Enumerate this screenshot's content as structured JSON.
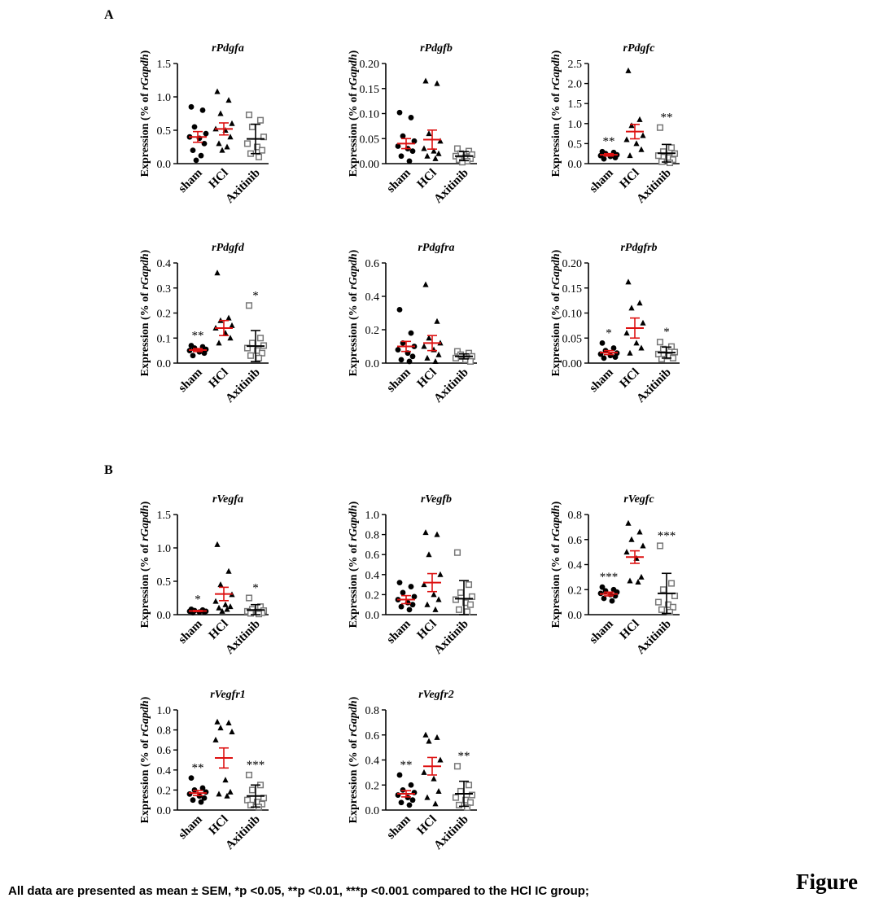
{
  "panel_labels": [
    "A",
    "B"
  ],
  "footnote": "All data are presented as mean ± SEM, *p <0.05, **p <0.01, ***p <0.001 compared to the HCl IC group;",
  "figure_label": "Figure",
  "colors": {
    "mean_sem": "#dd1111",
    "group_sd": "#000000",
    "axitinib_marker": "#777777",
    "axis": "#000000"
  },
  "chart_data": [
    {
      "type": "scatter",
      "title": "rPdgfa",
      "ylabel": "Expression (% of rGapdh)",
      "categories": [
        "sham",
        "HCl",
        "Axitinib"
      ],
      "ylim": [
        0,
        1.5
      ],
      "yticks": [
        {
          "v": 0,
          "t": "0.0"
        },
        {
          "v": 0.5,
          "t": "0.5"
        },
        {
          "v": 1,
          "t": "1.0"
        },
        {
          "v": 1.5,
          "t": "1.5"
        }
      ],
      "series": [
        {
          "group": "sham",
          "marker": "circle",
          "values": [
            0.85,
            0.8,
            0.55,
            0.45,
            0.4,
            0.38,
            0.3,
            0.2,
            0.12,
            0.05
          ],
          "mean": 0.4,
          "sem": 0.08,
          "bar": "red",
          "sig": ""
        },
        {
          "group": "HCl",
          "marker": "triangle",
          "values": [
            1.08,
            0.95,
            0.75,
            0.6,
            0.52,
            0.5,
            0.4,
            0.3,
            0.25,
            0.2
          ],
          "mean": 0.52,
          "sem": 0.09,
          "bar": "red",
          "sig": ""
        },
        {
          "group": "Axitinib",
          "marker": "square",
          "values": [
            0.73,
            0.65,
            0.55,
            0.4,
            0.3,
            0.25,
            0.2,
            0.15,
            0.1
          ],
          "mean": 0.37,
          "sem": 0.22,
          "bar": "black",
          "sig": ""
        }
      ]
    },
    {
      "type": "scatter",
      "title": "rPdgfb",
      "ylabel": "Expression (% of rGapdh)",
      "categories": [
        "sham",
        "HCl",
        "Axitinib"
      ],
      "ylim": [
        0,
        0.2
      ],
      "yticks": [
        {
          "v": 0,
          "t": "0.00"
        },
        {
          "v": 0.05,
          "t": "0.05"
        },
        {
          "v": 0.1,
          "t": "0.10"
        },
        {
          "v": 0.15,
          "t": "0.15"
        },
        {
          "v": 0.2,
          "t": "0.20"
        }
      ],
      "series": [
        {
          "group": "sham",
          "marker": "circle",
          "values": [
            0.102,
            0.092,
            0.055,
            0.045,
            0.035,
            0.03,
            0.025,
            0.015,
            0.005
          ],
          "mean": 0.04,
          "sem": 0.01,
          "bar": "red",
          "sig": ""
        },
        {
          "group": "HCl",
          "marker": "triangle",
          "values": [
            0.165,
            0.16,
            0.06,
            0.045,
            0.03,
            0.025,
            0.02,
            0.015,
            0.01
          ],
          "mean": 0.048,
          "sem": 0.019,
          "bar": "red",
          "sig": ""
        },
        {
          "group": "Axitinib",
          "marker": "square",
          "values": [
            0.03,
            0.025,
            0.02,
            0.018,
            0.015,
            0.012,
            0.01,
            0.008,
            0.005,
            0.003
          ],
          "mean": 0.015,
          "sem": 0.009,
          "bar": "black",
          "sig": ""
        }
      ]
    },
    {
      "type": "scatter",
      "title": "rPdgfc",
      "ylabel": "Expression (% of rGapdh)",
      "categories": [
        "sham",
        "HCl",
        "Axitinib"
      ],
      "ylim": [
        0,
        2.5
      ],
      "yticks": [
        {
          "v": 0,
          "t": "0.0"
        },
        {
          "v": 0.5,
          "t": "0.5"
        },
        {
          "v": 1,
          "t": "1.0"
        },
        {
          "v": 1.5,
          "t": "1.5"
        },
        {
          "v": 2,
          "t": "2.0"
        },
        {
          "v": 2.5,
          "t": "2.5"
        }
      ],
      "series": [
        {
          "group": "sham",
          "marker": "circle",
          "values": [
            0.3,
            0.28,
            0.25,
            0.22,
            0.2,
            0.18,
            0.15,
            0.12
          ],
          "mean": 0.22,
          "sem": 0.03,
          "bar": "red",
          "sig": "**"
        },
        {
          "group": "HCl",
          "marker": "triangle",
          "values": [
            2.32,
            1.1,
            0.95,
            0.7,
            0.6,
            0.5,
            0.35,
            0.2
          ],
          "mean": 0.8,
          "sem": 0.18,
          "bar": "red",
          "sig": ""
        },
        {
          "group": "Axitinib",
          "marker": "square",
          "values": [
            0.9,
            0.4,
            0.3,
            0.25,
            0.2,
            0.15,
            0.1,
            0.05,
            0.02
          ],
          "mean": 0.26,
          "sem": 0.22,
          "bar": "black",
          "sig": "**"
        }
      ]
    },
    {
      "type": "scatter",
      "title": "rPdgfd",
      "ylabel": "Expression (% of rGapdh)",
      "categories": [
        "sham",
        "HCl",
        "Axitinib"
      ],
      "ylim": [
        0,
        0.4
      ],
      "yticks": [
        {
          "v": 0,
          "t": "0.0"
        },
        {
          "v": 0.1,
          "t": "0.1"
        },
        {
          "v": 0.2,
          "t": "0.2"
        },
        {
          "v": 0.3,
          "t": "0.3"
        },
        {
          "v": 0.4,
          "t": "0.4"
        }
      ],
      "series": [
        {
          "group": "sham",
          "marker": "circle",
          "values": [
            0.07,
            0.065,
            0.06,
            0.055,
            0.05,
            0.045,
            0.04,
            0.03
          ],
          "mean": 0.052,
          "sem": 0.006,
          "bar": "red",
          "sig": "**"
        },
        {
          "group": "HCl",
          "marker": "triangle",
          "values": [
            0.36,
            0.18,
            0.17,
            0.15,
            0.14,
            0.12,
            0.1,
            0.08
          ],
          "mean": 0.14,
          "sem": 0.03,
          "bar": "red",
          "sig": ""
        },
        {
          "group": "Axitinib",
          "marker": "square",
          "values": [
            0.23,
            0.1,
            0.08,
            0.07,
            0.06,
            0.05,
            0.04,
            0.03,
            0.02
          ],
          "mean": 0.068,
          "sem": 0.062,
          "bar": "black",
          "sig": "*"
        }
      ]
    },
    {
      "type": "scatter",
      "title": "rPdgfra",
      "ylabel": "Expression (% of rGapdh)",
      "categories": [
        "sham",
        "HCl",
        "Axitinib"
      ],
      "ylim": [
        0,
        0.6
      ],
      "yticks": [
        {
          "v": 0,
          "t": "0.0"
        },
        {
          "v": 0.2,
          "t": "0.2"
        },
        {
          "v": 0.4,
          "t": "0.4"
        },
        {
          "v": 0.6,
          "t": "0.6"
        }
      ],
      "series": [
        {
          "group": "sham",
          "marker": "circle",
          "values": [
            0.32,
            0.18,
            0.12,
            0.1,
            0.08,
            0.06,
            0.04,
            0.02,
            0.01
          ],
          "mean": 0.1,
          "sem": 0.03,
          "bar": "red",
          "sig": ""
        },
        {
          "group": "HCl",
          "marker": "triangle",
          "values": [
            0.47,
            0.25,
            0.15,
            0.12,
            0.1,
            0.08,
            0.05,
            0.03,
            0.01
          ],
          "mean": 0.12,
          "sem": 0.045,
          "bar": "red",
          "sig": ""
        },
        {
          "group": "Axitinib",
          "marker": "square",
          "values": [
            0.07,
            0.06,
            0.05,
            0.04,
            0.03,
            0.02,
            0.01
          ],
          "mean": 0.04,
          "sem": 0.015,
          "bar": "black",
          "sig": ""
        }
      ]
    },
    {
      "type": "scatter",
      "title": "rPdgfrb",
      "ylabel": "Expression (% of rGapdh)",
      "categories": [
        "sham",
        "HCl",
        "Axitinib"
      ],
      "ylim": [
        0,
        0.2
      ],
      "yticks": [
        {
          "v": 0,
          "t": "0.00"
        },
        {
          "v": 0.05,
          "t": "0.05"
        },
        {
          "v": 0.1,
          "t": "0.10"
        },
        {
          "v": 0.15,
          "t": "0.15"
        },
        {
          "v": 0.2,
          "t": "0.20"
        }
      ],
      "series": [
        {
          "group": "sham",
          "marker": "circle",
          "values": [
            0.04,
            0.03,
            0.025,
            0.02,
            0.018,
            0.015,
            0.012,
            0.01
          ],
          "mean": 0.021,
          "sem": 0.004,
          "bar": "red",
          "sig": "*"
        },
        {
          "group": "HCl",
          "marker": "triangle",
          "values": [
            0.162,
            0.12,
            0.11,
            0.08,
            0.06,
            0.04,
            0.03,
            0.02
          ],
          "mean": 0.07,
          "sem": 0.02,
          "bar": "red",
          "sig": ""
        },
        {
          "group": "Axitinib",
          "marker": "square",
          "values": [
            0.042,
            0.033,
            0.028,
            0.022,
            0.018,
            0.014,
            0.01,
            0.008
          ],
          "mean": 0.021,
          "sem": 0.011,
          "bar": "black",
          "sig": "*"
        }
      ]
    },
    {
      "type": "scatter",
      "title": "rVegfa",
      "ylabel": "Expression (% of rGapdh)",
      "categories": [
        "sham",
        "HCl",
        "Axitinib"
      ],
      "ylim": [
        0,
        1.5
      ],
      "yticks": [
        {
          "v": 0,
          "t": "0.0"
        },
        {
          "v": 0.5,
          "t": "0.5"
        },
        {
          "v": 1,
          "t": "1.0"
        },
        {
          "v": 1.5,
          "t": "1.5"
        }
      ],
      "series": [
        {
          "group": "sham",
          "marker": "circle",
          "values": [
            0.08,
            0.07,
            0.06,
            0.05,
            0.05,
            0.04,
            0.04,
            0.03
          ],
          "mean": 0.055,
          "sem": 0.008,
          "bar": "red",
          "sig": "*"
        },
        {
          "group": "HCl",
          "marker": "triangle",
          "values": [
            1.05,
            0.65,
            0.45,
            0.3,
            0.2,
            0.15,
            0.12,
            0.1,
            0.08,
            0.05
          ],
          "mean": 0.31,
          "sem": 0.1,
          "bar": "red",
          "sig": ""
        },
        {
          "group": "Axitinib",
          "marker": "square",
          "values": [
            0.25,
            0.12,
            0.08,
            0.06,
            0.05,
            0.04,
            0.03,
            0.02,
            0.01
          ],
          "mean": 0.07,
          "sem": 0.08,
          "bar": "black",
          "sig": "*"
        }
      ]
    },
    {
      "type": "scatter",
      "title": "rVegfb",
      "ylabel": "Expression (% of rGapdh)",
      "categories": [
        "sham",
        "HCl",
        "Axitinib"
      ],
      "ylim": [
        0,
        1.0
      ],
      "yticks": [
        {
          "v": 0,
          "t": "0.0"
        },
        {
          "v": 0.2,
          "t": "0.2"
        },
        {
          "v": 0.4,
          "t": "0.4"
        },
        {
          "v": 0.6,
          "t": "0.6"
        },
        {
          "v": 0.8,
          "t": "0.8"
        },
        {
          "v": 1,
          "t": "1.0"
        }
      ],
      "series": [
        {
          "group": "sham",
          "marker": "circle",
          "values": [
            0.32,
            0.28,
            0.22,
            0.18,
            0.15,
            0.12,
            0.1,
            0.08,
            0.05
          ],
          "mean": 0.15,
          "sem": 0.04,
          "bar": "red",
          "sig": ""
        },
        {
          "group": "HCl",
          "marker": "triangle",
          "values": [
            0.82,
            0.8,
            0.6,
            0.4,
            0.3,
            0.2,
            0.15,
            0.1,
            0.05
          ],
          "mean": 0.32,
          "sem": 0.09,
          "bar": "red",
          "sig": ""
        },
        {
          "group": "Axitinib",
          "marker": "square",
          "values": [
            0.62,
            0.3,
            0.22,
            0.18,
            0.15,
            0.12,
            0.1,
            0.05,
            0.03
          ],
          "mean": 0.16,
          "sem": 0.18,
          "bar": "black",
          "sig": ""
        }
      ]
    },
    {
      "type": "scatter",
      "title": "rVegfc",
      "ylabel": "Expression (% of rGapdh)",
      "categories": [
        "sham",
        "HCl",
        "Axitinib"
      ],
      "ylim": [
        0,
        0.8
      ],
      "yticks": [
        {
          "v": 0,
          "t": "0.0"
        },
        {
          "v": 0.2,
          "t": "0.2"
        },
        {
          "v": 0.4,
          "t": "0.4"
        },
        {
          "v": 0.6,
          "t": "0.6"
        },
        {
          "v": 0.8,
          "t": "0.8"
        }
      ],
      "series": [
        {
          "group": "sham",
          "marker": "circle",
          "values": [
            0.22,
            0.2,
            0.19,
            0.18,
            0.17,
            0.16,
            0.15,
            0.13,
            0.11
          ],
          "mean": 0.165,
          "sem": 0.015,
          "bar": "red",
          "sig": "***"
        },
        {
          "group": "HCl",
          "marker": "triangle",
          "values": [
            0.73,
            0.66,
            0.6,
            0.55,
            0.5,
            0.45,
            0.3,
            0.27,
            0.26
          ],
          "mean": 0.46,
          "sem": 0.05,
          "bar": "red",
          "sig": ""
        },
        {
          "group": "Axitinib",
          "marker": "square",
          "values": [
            0.55,
            0.25,
            0.2,
            0.15,
            0.1,
            0.08,
            0.06,
            0.04,
            0.02
          ],
          "mean": 0.17,
          "sem": 0.16,
          "bar": "black",
          "sig": "***"
        }
      ]
    },
    {
      "type": "scatter",
      "title": "rVegfr1",
      "ylabel": "Expression (% of rGapdh)",
      "categories": [
        "sham",
        "HCl",
        "Axitinib"
      ],
      "ylim": [
        0,
        1.0
      ],
      "yticks": [
        {
          "v": 0,
          "t": "0.0"
        },
        {
          "v": 0.2,
          "t": "0.2"
        },
        {
          "v": 0.4,
          "t": "0.4"
        },
        {
          "v": 0.6,
          "t": "0.6"
        },
        {
          "v": 0.8,
          "t": "0.8"
        },
        {
          "v": 1,
          "t": "1.0"
        }
      ],
      "series": [
        {
          "group": "sham",
          "marker": "circle",
          "values": [
            0.32,
            0.22,
            0.2,
            0.18,
            0.16,
            0.14,
            0.12,
            0.1,
            0.08
          ],
          "mean": 0.17,
          "sem": 0.025,
          "bar": "red",
          "sig": "**"
        },
        {
          "group": "HCl",
          "marker": "triangle",
          "values": [
            0.88,
            0.87,
            0.82,
            0.78,
            0.7,
            0.3,
            0.18,
            0.16,
            0.14
          ],
          "mean": 0.52,
          "sem": 0.1,
          "bar": "red",
          "sig": ""
        },
        {
          "group": "Axitinib",
          "marker": "square",
          "values": [
            0.35,
            0.25,
            0.2,
            0.12,
            0.1,
            0.08,
            0.06,
            0.05,
            0.03
          ],
          "mean": 0.14,
          "sem": 0.11,
          "bar": "black",
          "sig": "***"
        }
      ]
    },
    {
      "type": "scatter",
      "title": "rVegfr2",
      "ylabel": "Expression (% of rGapdh)",
      "categories": [
        "sham",
        "HCl",
        "Axitinib"
      ],
      "ylim": [
        0,
        0.8
      ],
      "yticks": [
        {
          "v": 0,
          "t": "0.0"
        },
        {
          "v": 0.2,
          "t": "0.2"
        },
        {
          "v": 0.4,
          "t": "0.4"
        },
        {
          "v": 0.6,
          "t": "0.6"
        },
        {
          "v": 0.8,
          "t": "0.8"
        }
      ],
      "series": [
        {
          "group": "sham",
          "marker": "circle",
          "values": [
            0.28,
            0.2,
            0.16,
            0.14,
            0.12,
            0.1,
            0.08,
            0.06,
            0.04
          ],
          "mean": 0.13,
          "sem": 0.025,
          "bar": "red",
          "sig": "**"
        },
        {
          "group": "HCl",
          "marker": "triangle",
          "values": [
            0.6,
            0.58,
            0.55,
            0.4,
            0.3,
            0.25,
            0.15,
            0.1,
            0.05
          ],
          "mean": 0.35,
          "sem": 0.07,
          "bar": "red",
          "sig": ""
        },
        {
          "group": "Axitinib",
          "marker": "square",
          "values": [
            0.35,
            0.2,
            0.15,
            0.12,
            0.1,
            0.08,
            0.06,
            0.04,
            0.02
          ],
          "mean": 0.13,
          "sem": 0.1,
          "bar": "black",
          "sig": "**"
        }
      ]
    }
  ]
}
